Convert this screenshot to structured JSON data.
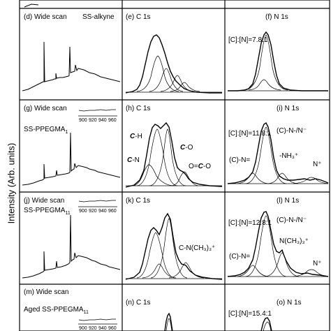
{
  "figure": {
    "ylabel": "Intensity (Arb. units)"
  },
  "panels": {
    "d": {
      "label": "(d) Wide scan",
      "sample": "SS-alkyne"
    },
    "e": {
      "label": "(e) C 1s"
    },
    "f": {
      "label": "(f) N 1s",
      "ratio": "[C]:[N]=7.8:1"
    },
    "g": {
      "label": "(g) Wide scan",
      "sample": "SS-PPEGMA",
      "sample_sub": "1"
    },
    "h": {
      "label": "(h) C 1s",
      "peak_ch_main": "C",
      "peak_ch_rest": "-H",
      "peak_cn_main": "C",
      "peak_cn_rest": "-N",
      "peak_co_main": "C",
      "peak_co_rest": "-O",
      "peak_oco_pre": "O=",
      "peak_oco_main": "C",
      "peak_oco_rest": "-O"
    },
    "i": {
      "label": "(i) N 1s",
      "ratio": "[C]:[N]=11.8:1",
      "peak_cn": "(C)-N-/N⁻",
      "peak_ceqn": "(C)-N=",
      "peak_nh3": "-NH₃⁺",
      "peak_nplus": "N⁺"
    },
    "j": {
      "label": "(j) Wide scan",
      "sample": "SS-PPEGMA",
      "sample_sub": "11"
    },
    "k": {
      "label": "(k) C 1s",
      "peak_cnme3": "C-N(CH₃)₃⁺"
    },
    "l": {
      "label": "(l) N 1s",
      "ratio": "[C]:[N]=12.8:1",
      "peak_cn": "(C)-N-/N⁻",
      "peak_ceqn": "(C)-N=",
      "peak_nme3": "N(CH₃)₃⁺",
      "peak_nplus": "N⁺"
    },
    "m": {
      "label": "(m) Wide scan",
      "sample": "Aged SS-PPEGMA",
      "sample_sub": "11"
    },
    "n": {
      "label": "(n) C 1s"
    },
    "o": {
      "label": "(o) N 1s",
      "ratio": "[C]:[N]=15.4:1"
    }
  },
  "inset_ticks": [
    "900",
    "920",
    "940",
    "960"
  ],
  "chart_data": [
    {
      "type": "line",
      "panel": "wide scan",
      "xlabel": "",
      "ylabel": "Intensity (Arb. units)"
    },
    {
      "type": "line",
      "panel": "C 1s",
      "xlabel": "",
      "ylabel": ""
    },
    {
      "type": "line",
      "panel": "N 1s",
      "xlabel": "",
      "ylabel": ""
    }
  ]
}
